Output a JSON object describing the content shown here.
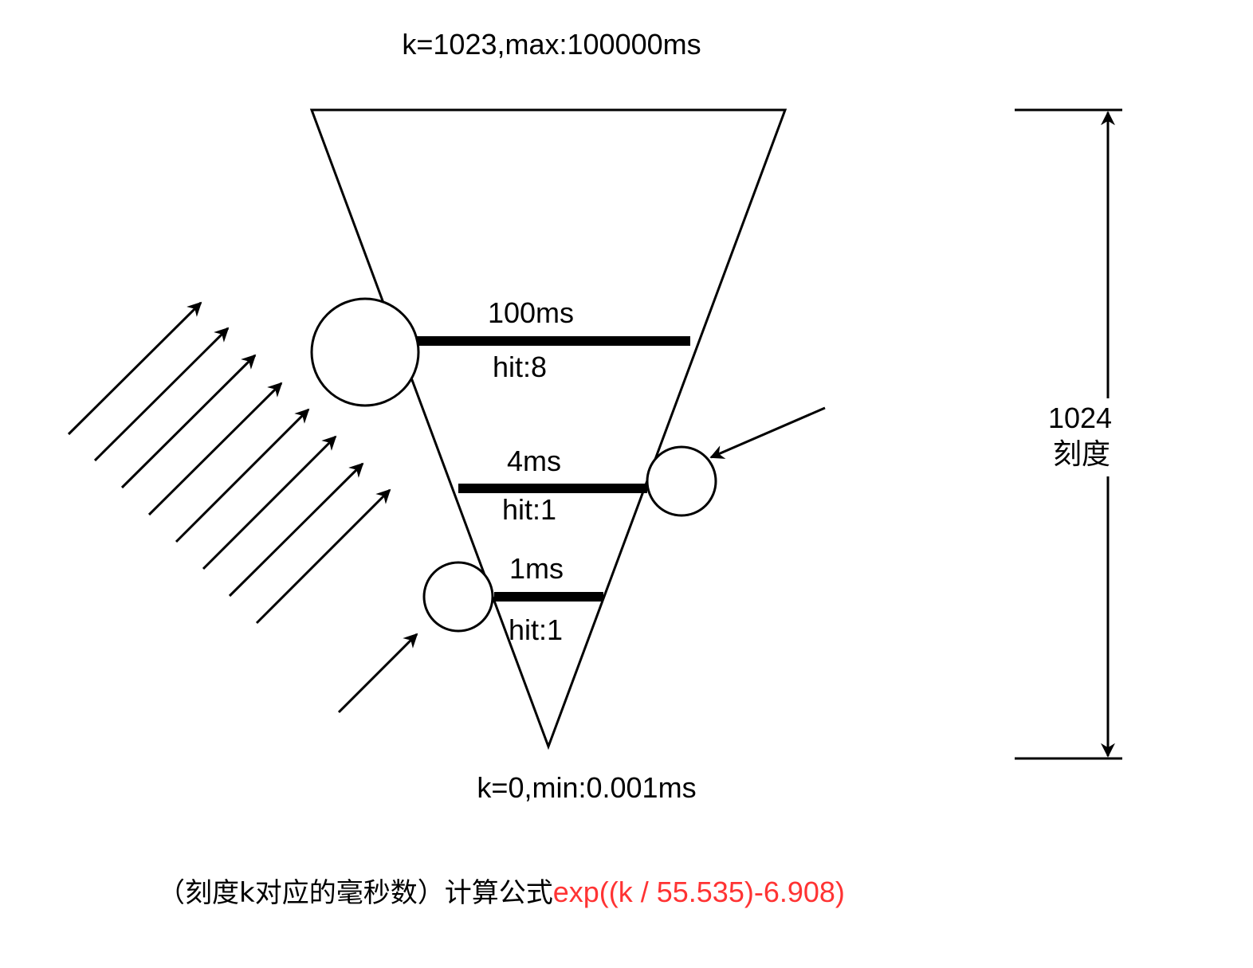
{
  "labels": {
    "top": "k=1023,max:100000ms",
    "bottom": "k=0,min:0.001ms",
    "scale_value": "1024",
    "scale_unit": "刻度"
  },
  "levels": [
    {
      "ms": "100ms",
      "hit": "hit:8"
    },
    {
      "ms": "4ms",
      "hit": "hit:1"
    },
    {
      "ms": "1ms",
      "hit": "hit:1"
    }
  ],
  "formula": {
    "prefix": "（刻度k对应的毫秒数）计算公式",
    "expression": "exp((k / 55.535)-6.908)"
  },
  "colors": {
    "stroke": "#000000",
    "formula": "#ff3333",
    "background": "#ffffff"
  }
}
